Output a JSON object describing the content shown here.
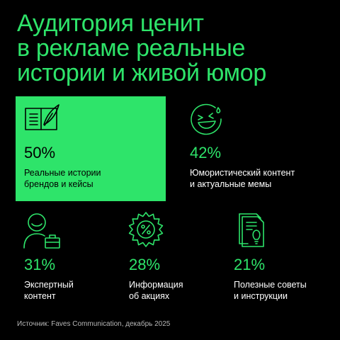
{
  "title_lines": [
    "Аудитория ценит",
    "в рекламе реальные",
    "истории и живой юмор"
  ],
  "colors": {
    "accent": "#2ee46a",
    "background": "#000000",
    "text": "#ffffff",
    "muted": "#b7b7b7"
  },
  "chart_data": {
    "type": "table",
    "title": "Аудитория ценит в рекламе реальные истории и живой юмор",
    "categories": [
      "Реальные истории брендов и кейсы",
      "Юмористический контент и актуальные мемы",
      "Экспертный контент",
      "Информация об акциях",
      "Полезные советы и инструкции"
    ],
    "values": [
      50,
      42,
      31,
      28,
      21
    ],
    "unit": "%"
  },
  "cards": [
    {
      "pct": "50%",
      "desc_line1": "Реальные истории",
      "desc_line2": "брендов и кейсы",
      "icon": "book-feather-icon"
    },
    {
      "pct": "42%",
      "desc_line1": "Юмористический контент",
      "desc_line2": "и актуальные мемы",
      "icon": "laughing-face-icon"
    },
    {
      "pct": "31%",
      "desc_line1": "Экспертный",
      "desc_line2": "контент",
      "icon": "expert-briefcase-icon"
    },
    {
      "pct": "28%",
      "desc_line1": "Информация",
      "desc_line2": "об акциях",
      "icon": "discount-badge-icon"
    },
    {
      "pct": "21%",
      "desc_line1": "Полезные советы",
      "desc_line2": "и инструкции",
      "icon": "document-lightbulb-icon"
    }
  ],
  "source": "Источник: Faves Communication, декабрь 2025"
}
